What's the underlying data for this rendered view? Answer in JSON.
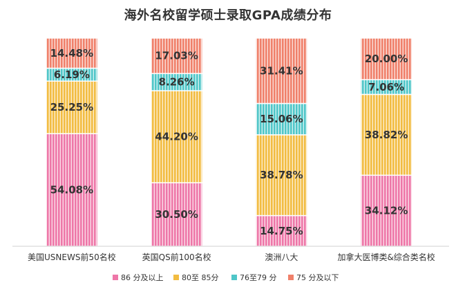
{
  "chart_data": {
    "type": "bar",
    "stacked": true,
    "title": "海外名校留学硕士录取GPA成绩分布",
    "categories": [
      "美国USNEWS前50名校",
      "英国QS前100名校",
      "澳洲八大",
      "加拿大医博类&综合类名校"
    ],
    "series": [
      {
        "name": "86 分及以上",
        "color": "#EE77A8",
        "values": [
          54.08,
          30.5,
          14.75,
          34.12
        ],
        "labels": [
          "54.08%",
          "30.50%",
          "14.75%",
          "34.12%"
        ]
      },
      {
        "name": "80至 85分",
        "color": "#F2BC41",
        "values": [
          25.25,
          44.2,
          38.78,
          38.82
        ],
        "labels": [
          "25.25%",
          "44.20%",
          "38.78%",
          "38.82%"
        ]
      },
      {
        "name": "76至79 分",
        "color": "#4FC6C8",
        "values": [
          6.19,
          8.26,
          15.06,
          7.06
        ],
        "labels": [
          "6.19%",
          "8.26%",
          "15.06%",
          "7.06%"
        ]
      },
      {
        "name": "75 分及以下",
        "color": "#F0806A",
        "values": [
          14.48,
          17.03,
          31.41,
          20.0
        ],
        "labels": [
          "14.48%",
          "17.03%",
          "31.41%",
          "20.00%"
        ]
      }
    ],
    "ylim": [
      0,
      100
    ],
    "legend": "bottom",
    "grid": false
  }
}
